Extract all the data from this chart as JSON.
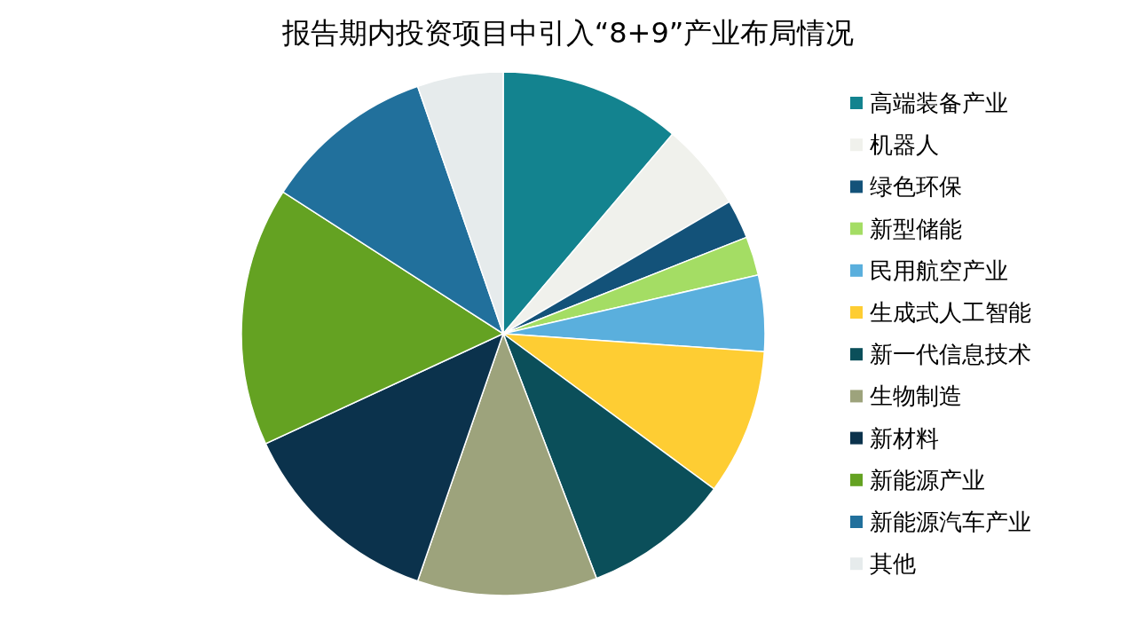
{
  "chart_data": {
    "type": "pie",
    "title": "报告期内投资项目中引入“8+9”产业布局情况",
    "categories": [
      "高端装备产业",
      "机器人",
      "绿色环保",
      "新型储能",
      "民用航空产业",
      "生成式人工智能",
      "新一代信息技术",
      "生物制造",
      "新材料",
      "新能源产业",
      "新能源汽车产业",
      "其他"
    ],
    "values": [
      11.2,
      5.4,
      2.4,
      2.4,
      4.7,
      9.0,
      9.1,
      11.1,
      12.8,
      16.0,
      10.6,
      5.3
    ],
    "colors": [
      "#13838f",
      "#f0f1ec",
      "#135279",
      "#a4dd64",
      "#5aafdd",
      "#fecd33",
      "#0b4f5a",
      "#9da37c",
      "#0b324c",
      "#64a222",
      "#21709c",
      "#e6ebec"
    ],
    "legend": "right"
  }
}
